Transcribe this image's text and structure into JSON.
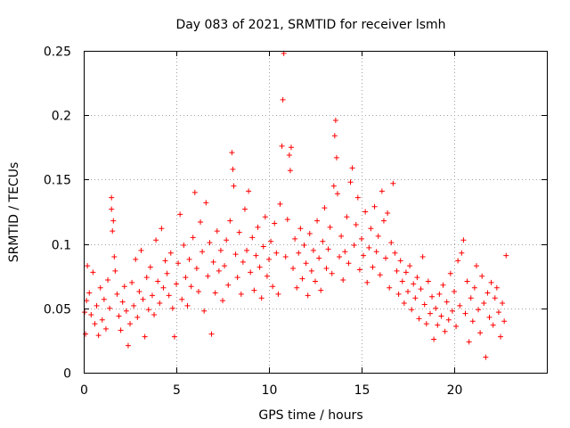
{
  "chart_data": {
    "type": "scatter",
    "title": "Day 083 of 2021, SRMTID for receiver lsmh",
    "xlabel": "GPS time / hours",
    "ylabel": "SRMTID / TECUs",
    "xlim": [
      0,
      25
    ],
    "ylim": [
      0,
      0.25
    ],
    "x_ticks": [
      0,
      5,
      10,
      15,
      20
    ],
    "x_tick_labels": [
      "0",
      "5",
      "10",
      "15",
      "20"
    ],
    "y_ticks": [
      0,
      0.05,
      0.1,
      0.15,
      0.2,
      0.25
    ],
    "y_tick_labels": [
      "0",
      "0.05",
      "0.1",
      "0.15",
      "0.2",
      "0.25"
    ],
    "grid": true,
    "marker": "+",
    "series_color": "#ff0000",
    "series": [
      {
        "name": "SRMTID",
        "points": [
          [
            0.05,
            0.047
          ],
          [
            0.1,
            0.03
          ],
          [
            0.15,
            0.056
          ],
          [
            0.2,
            0.083
          ],
          [
            0.3,
            0.062
          ],
          [
            0.4,
            0.045
          ],
          [
            0.5,
            0.078
          ],
          [
            0.6,
            0.038
          ],
          [
            0.7,
            0.052
          ],
          [
            0.8,
            0.029
          ],
          [
            0.9,
            0.066
          ],
          [
            1.0,
            0.041
          ],
          [
            1.1,
            0.057
          ],
          [
            1.2,
            0.034
          ],
          [
            1.3,
            0.072
          ],
          [
            1.4,
            0.05
          ],
          [
            1.5,
            0.136
          ],
          [
            1.5,
            0.127
          ],
          [
            1.55,
            0.11
          ],
          [
            1.6,
            0.118
          ],
          [
            1.65,
            0.09
          ],
          [
            1.7,
            0.079
          ],
          [
            1.8,
            0.061
          ],
          [
            1.9,
            0.044
          ],
          [
            2.0,
            0.033
          ],
          [
            2.1,
            0.055
          ],
          [
            2.2,
            0.067
          ],
          [
            2.3,
            0.048
          ],
          [
            2.4,
            0.021
          ],
          [
            2.5,
            0.038
          ],
          [
            2.6,
            0.07
          ],
          [
            2.7,
            0.052
          ],
          [
            2.8,
            0.088
          ],
          [
            2.9,
            0.043
          ],
          [
            3.0,
            0.063
          ],
          [
            3.1,
            0.095
          ],
          [
            3.2,
            0.057
          ],
          [
            3.3,
            0.028
          ],
          [
            3.4,
            0.074
          ],
          [
            3.5,
            0.049
          ],
          [
            3.6,
            0.082
          ],
          [
            3.7,
            0.06
          ],
          [
            3.8,
            0.045
          ],
          [
            3.9,
            0.103
          ],
          [
            4.0,
            0.071
          ],
          [
            4.1,
            0.054
          ],
          [
            4.2,
            0.112
          ],
          [
            4.3,
            0.066
          ],
          [
            4.4,
            0.087
          ],
          [
            4.5,
            0.077
          ],
          [
            4.6,
            0.06
          ],
          [
            4.7,
            0.093
          ],
          [
            4.8,
            0.05
          ],
          [
            4.9,
            0.028
          ],
          [
            5.0,
            0.069
          ],
          [
            5.1,
            0.085
          ],
          [
            5.2,
            0.123
          ],
          [
            5.3,
            0.057
          ],
          [
            5.4,
            0.099
          ],
          [
            5.5,
            0.074
          ],
          [
            5.6,
            0.052
          ],
          [
            5.7,
            0.088
          ],
          [
            5.8,
            0.067
          ],
          [
            5.9,
            0.105
          ],
          [
            6.0,
            0.14
          ],
          [
            6.1,
            0.081
          ],
          [
            6.2,
            0.063
          ],
          [
            6.3,
            0.117
          ],
          [
            6.4,
            0.094
          ],
          [
            6.5,
            0.048
          ],
          [
            6.6,
            0.132
          ],
          [
            6.7,
            0.075
          ],
          [
            6.8,
            0.101
          ],
          [
            6.9,
            0.03
          ],
          [
            7.0,
            0.086
          ],
          [
            7.1,
            0.062
          ],
          [
            7.2,
            0.11
          ],
          [
            7.3,
            0.079
          ],
          [
            7.4,
            0.095
          ],
          [
            7.5,
            0.056
          ],
          [
            7.6,
            0.083
          ],
          [
            7.7,
            0.103
          ],
          [
            7.8,
            0.068
          ],
          [
            7.9,
            0.118
          ],
          [
            8.0,
            0.171
          ],
          [
            8.05,
            0.158
          ],
          [
            8.1,
            0.145
          ],
          [
            8.2,
            0.092
          ],
          [
            8.3,
            0.074
          ],
          [
            8.4,
            0.109
          ],
          [
            8.5,
            0.061
          ],
          [
            8.6,
            0.086
          ],
          [
            8.7,
            0.127
          ],
          [
            8.8,
            0.095
          ],
          [
            8.9,
            0.141
          ],
          [
            9.0,
            0.078
          ],
          [
            9.1,
            0.105
          ],
          [
            9.2,
            0.064
          ],
          [
            9.3,
            0.091
          ],
          [
            9.4,
            0.113
          ],
          [
            9.5,
            0.082
          ],
          [
            9.6,
            0.058
          ],
          [
            9.7,
            0.098
          ],
          [
            9.8,
            0.121
          ],
          [
            9.9,
            0.075
          ],
          [
            10.0,
            0.088
          ],
          [
            10.1,
            0.102
          ],
          [
            10.2,
            0.067
          ],
          [
            10.3,
            0.116
          ],
          [
            10.4,
            0.093
          ],
          [
            10.5,
            0.061
          ],
          [
            10.6,
            0.131
          ],
          [
            10.7,
            0.176
          ],
          [
            10.75,
            0.212
          ],
          [
            10.8,
            0.248
          ],
          [
            10.9,
            0.09
          ],
          [
            11.0,
            0.119
          ],
          [
            11.1,
            0.169
          ],
          [
            11.15,
            0.157
          ],
          [
            11.2,
            0.175
          ],
          [
            11.3,
            0.081
          ],
          [
            11.4,
            0.104
          ],
          [
            11.5,
            0.066
          ],
          [
            11.6,
            0.093
          ],
          [
            11.7,
            0.112
          ],
          [
            11.8,
            0.073
          ],
          [
            11.9,
            0.099
          ],
          [
            12.0,
            0.085
          ],
          [
            12.1,
            0.06
          ],
          [
            12.2,
            0.108
          ],
          [
            12.3,
            0.079
          ],
          [
            12.4,
            0.095
          ],
          [
            12.5,
            0.071
          ],
          [
            12.6,
            0.118
          ],
          [
            12.7,
            0.089
          ],
          [
            12.8,
            0.064
          ],
          [
            12.9,
            0.102
          ],
          [
            13.0,
            0.128
          ],
          [
            13.1,
            0.081
          ],
          [
            13.2,
            0.096
          ],
          [
            13.3,
            0.113
          ],
          [
            13.4,
            0.077
          ],
          [
            13.5,
            0.145
          ],
          [
            13.55,
            0.184
          ],
          [
            13.6,
            0.196
          ],
          [
            13.65,
            0.167
          ],
          [
            13.7,
            0.139
          ],
          [
            13.8,
            0.09
          ],
          [
            13.9,
            0.106
          ],
          [
            14.0,
            0.072
          ],
          [
            14.1,
            0.094
          ],
          [
            14.2,
            0.121
          ],
          [
            14.3,
            0.085
          ],
          [
            14.4,
            0.148
          ],
          [
            14.5,
            0.159
          ],
          [
            14.6,
            0.099
          ],
          [
            14.7,
            0.115
          ],
          [
            14.8,
            0.136
          ],
          [
            14.9,
            0.08
          ],
          [
            15.0,
            0.104
          ],
          [
            15.1,
            0.091
          ],
          [
            15.2,
            0.125
          ],
          [
            15.3,
            0.07
          ],
          [
            15.4,
            0.097
          ],
          [
            15.5,
            0.112
          ],
          [
            15.6,
            0.082
          ],
          [
            15.7,
            0.129
          ],
          [
            15.8,
            0.094
          ],
          [
            15.9,
            0.106
          ],
          [
            16.0,
            0.076
          ],
          [
            16.1,
            0.141
          ],
          [
            16.2,
            0.118
          ],
          [
            16.3,
            0.089
          ],
          [
            16.4,
            0.124
          ],
          [
            16.5,
            0.066
          ],
          [
            16.6,
            0.101
          ],
          [
            16.7,
            0.147
          ],
          [
            16.8,
            0.093
          ],
          [
            16.9,
            0.079
          ],
          [
            17.0,
            0.061
          ],
          [
            17.1,
            0.087
          ],
          [
            17.2,
            0.071
          ],
          [
            17.3,
            0.054
          ],
          [
            17.4,
            0.078
          ],
          [
            17.5,
            0.063
          ],
          [
            17.6,
            0.083
          ],
          [
            17.7,
            0.049
          ],
          [
            17.8,
            0.069
          ],
          [
            17.9,
            0.058
          ],
          [
            18.0,
            0.074
          ],
          [
            18.1,
            0.042
          ],
          [
            18.2,
            0.065
          ],
          [
            18.3,
            0.09
          ],
          [
            18.4,
            0.053
          ],
          [
            18.5,
            0.038
          ],
          [
            18.6,
            0.071
          ],
          [
            18.7,
            0.046
          ],
          [
            18.8,
            0.059
          ],
          [
            18.9,
            0.026
          ],
          [
            19.0,
            0.05
          ],
          [
            19.1,
            0.037
          ],
          [
            19.2,
            0.061
          ],
          [
            19.3,
            0.044
          ],
          [
            19.4,
            0.068
          ],
          [
            19.5,
            0.032
          ],
          [
            19.6,
            0.055
          ],
          [
            19.7,
            0.041
          ],
          [
            19.8,
            0.077
          ],
          [
            19.9,
            0.048
          ],
          [
            20.0,
            0.063
          ],
          [
            20.1,
            0.036
          ],
          [
            20.2,
            0.087
          ],
          [
            20.3,
            0.052
          ],
          [
            20.4,
            0.093
          ],
          [
            20.5,
            0.103
          ],
          [
            20.6,
            0.046
          ],
          [
            20.7,
            0.071
          ],
          [
            20.8,
            0.024
          ],
          [
            20.9,
            0.058
          ],
          [
            21.0,
            0.04
          ],
          [
            21.1,
            0.066
          ],
          [
            21.2,
            0.083
          ],
          [
            21.3,
            0.049
          ],
          [
            21.4,
            0.031
          ],
          [
            21.5,
            0.075
          ],
          [
            21.6,
            0.054
          ],
          [
            21.7,
            0.012
          ],
          [
            21.8,
            0.062
          ],
          [
            21.9,
            0.043
          ],
          [
            22.0,
            0.07
          ],
          [
            22.1,
            0.037
          ],
          [
            22.2,
            0.058
          ],
          [
            22.3,
            0.066
          ],
          [
            22.4,
            0.047
          ],
          [
            22.5,
            0.028
          ],
          [
            22.6,
            0.054
          ],
          [
            22.7,
            0.04
          ],
          [
            22.8,
            0.091
          ]
        ]
      }
    ]
  }
}
